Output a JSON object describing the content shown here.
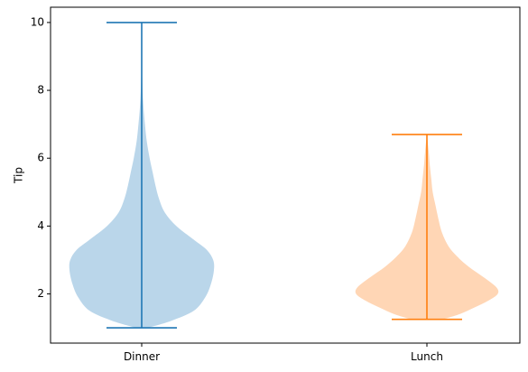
{
  "chart_data": {
    "type": "violin",
    "title": "",
    "xlabel": "",
    "ylabel": "Tip",
    "categories": [
      "Dinner",
      "Lunch"
    ],
    "ylim": [
      0.55,
      10.45
    ],
    "yticks": [
      2,
      4,
      6,
      8,
      10
    ],
    "grid": false,
    "legend": "none",
    "series": [
      {
        "category": "Dinner",
        "color": "#1f77b4",
        "fill": "#bad6ea",
        "min": 1.0,
        "max": 10.0,
        "density": [
          [
            1.0,
            0.08
          ],
          [
            1.2,
            0.4
          ],
          [
            1.5,
            0.72
          ],
          [
            1.9,
            0.88
          ],
          [
            2.3,
            0.96
          ],
          [
            2.7,
            1.0
          ],
          [
            3.0,
            0.99
          ],
          [
            3.3,
            0.9
          ],
          [
            3.6,
            0.72
          ],
          [
            4.0,
            0.48
          ],
          [
            4.4,
            0.32
          ],
          [
            4.8,
            0.24
          ],
          [
            5.2,
            0.19
          ],
          [
            5.6,
            0.15
          ],
          [
            6.0,
            0.11
          ],
          [
            6.5,
            0.07
          ],
          [
            7.0,
            0.045
          ],
          [
            7.5,
            0.025
          ],
          [
            8.0,
            0.012
          ],
          [
            8.5,
            0.006
          ],
          [
            9.0,
            0.003
          ],
          [
            10.0,
            0.0
          ]
        ]
      },
      {
        "category": "Lunch",
        "color": "#ff7f0e",
        "fill": "#ffd6b5",
        "min": 1.25,
        "max": 6.7,
        "density": [
          [
            1.25,
            0.22
          ],
          [
            1.4,
            0.45
          ],
          [
            1.6,
            0.66
          ],
          [
            1.8,
            0.85
          ],
          [
            2.0,
            0.98
          ],
          [
            2.2,
            0.96
          ],
          [
            2.5,
            0.78
          ],
          [
            2.8,
            0.58
          ],
          [
            3.1,
            0.42
          ],
          [
            3.4,
            0.3
          ],
          [
            3.8,
            0.21
          ],
          [
            4.2,
            0.16
          ],
          [
            4.6,
            0.12
          ],
          [
            5.0,
            0.08
          ],
          [
            5.4,
            0.06
          ],
          [
            5.8,
            0.04
          ],
          [
            6.2,
            0.025
          ],
          [
            6.7,
            0.0
          ]
        ]
      }
    ]
  }
}
